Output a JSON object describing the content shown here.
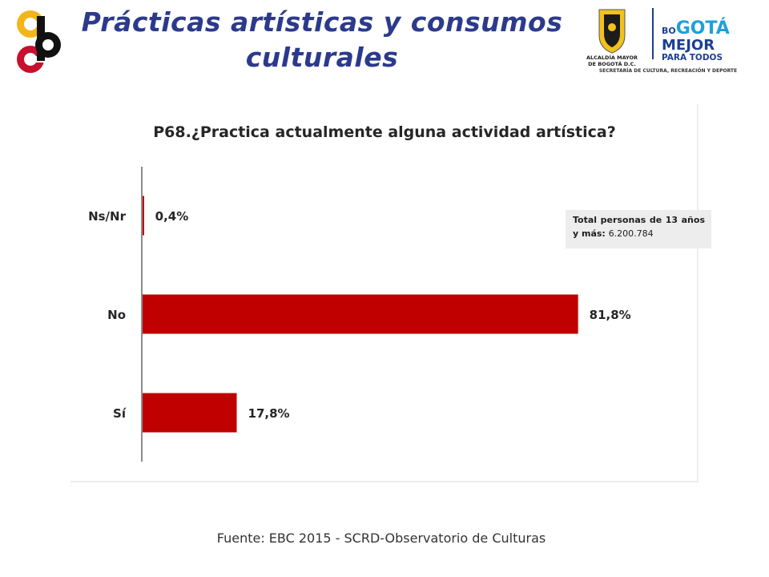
{
  "header": {
    "title": "Prácticas artísticas y consumos culturales",
    "logo_left_letters": "ocb",
    "logo_right": {
      "line1": "ALCALDÍA MAYOR",
      "line2": "DE BOGOTÁ D.C.",
      "brand_top_small": "BO",
      "brand_top_big": "GOTÁ",
      "brand_mid": "MEJOR",
      "brand_bottom": "PARA TODOS",
      "secretaria": "SECRETARÍA DE CULTURA, RECREACIÓN Y DEPORTE"
    }
  },
  "chart_data": {
    "type": "bar",
    "orientation": "horizontal",
    "title": "P68.¿Practica actualmente alguna actividad artística?",
    "categories": [
      "Ns/Nr",
      "No",
      "Sí"
    ],
    "values": [
      0.4,
      81.8,
      17.8
    ],
    "value_labels": [
      "0,4%",
      "81,8%",
      "17,8%"
    ],
    "unit": "%",
    "xlim": [
      0,
      82
    ],
    "bar_color": "#c00000",
    "grid": false,
    "legend": "none"
  },
  "note": {
    "label": "Total personas de 13 años y más:",
    "value": "6.200.784"
  },
  "source": "Fuente: EBC 2015 - SCRD-Observatorio de Culturas",
  "colors": {
    "title": "#2c3a8c",
    "bar": "#c00000",
    "logo_yellow": "#f2b51c",
    "logo_red": "#c8102e",
    "brand_blue": "#1c3f94",
    "brand_cyan": "#1fa0d8"
  }
}
